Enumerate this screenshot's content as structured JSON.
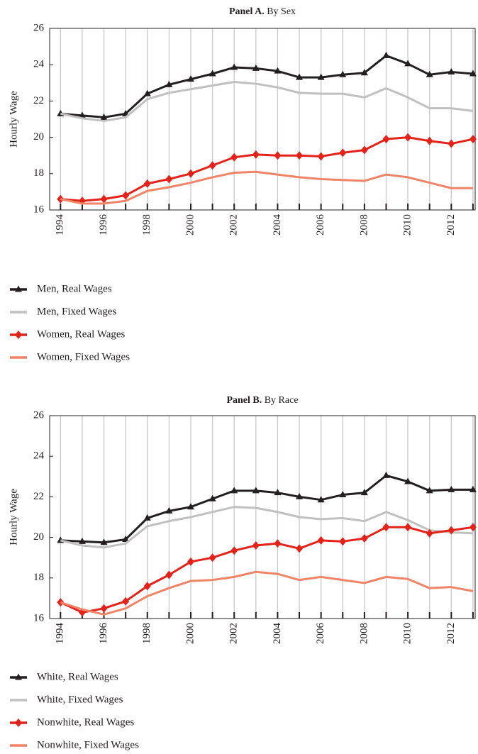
{
  "chart_data": [
    {
      "type": "line",
      "title_prefix": "Panel A.",
      "title": "By Sex",
      "ylabel": "Hourly Wage",
      "x": [
        1994,
        1995,
        1996,
        1997,
        1998,
        1999,
        2000,
        2001,
        2002,
        2003,
        2004,
        2005,
        2006,
        2007,
        2008,
        2009,
        2010,
        2011,
        2012,
        2013
      ],
      "xlim": [
        1993.5,
        2013.1
      ],
      "xticks": [
        1994,
        1996,
        1998,
        2000,
        2002,
        2004,
        2006,
        2008,
        2010,
        2012
      ],
      "ylim": [
        16,
        26
      ],
      "yticks": [
        16,
        18,
        20,
        22,
        24,
        26
      ],
      "grid": "x",
      "series": [
        {
          "name": "Men, Real Wages",
          "color": "#231f20",
          "marker": "triangle",
          "values": [
            21.3,
            21.2,
            21.1,
            21.3,
            22.4,
            22.9,
            23.2,
            23.5,
            23.85,
            23.8,
            23.65,
            23.3,
            23.3,
            23.45,
            23.55,
            24.5,
            24.05,
            23.45,
            23.6,
            23.5
          ]
        },
        {
          "name": "Men, Fixed Wages",
          "color": "#c0c0c0",
          "values": [
            21.3,
            21.05,
            20.9,
            21.1,
            22.1,
            22.45,
            22.65,
            22.85,
            23.05,
            22.95,
            22.75,
            22.45,
            22.4,
            22.4,
            22.2,
            22.7,
            22.2,
            21.6,
            21.6,
            21.45
          ]
        },
        {
          "name": "Women, Real Wages",
          "color": "#e32219",
          "marker": "diamond",
          "values": [
            16.6,
            16.5,
            16.6,
            16.8,
            17.45,
            17.7,
            18.0,
            18.45,
            18.9,
            19.05,
            19.0,
            19.0,
            18.95,
            19.15,
            19.3,
            19.9,
            20.0,
            19.8,
            19.65,
            19.9
          ]
        },
        {
          "name": "Women, Fixed Wages",
          "color": "#f08467",
          "values": [
            16.6,
            16.35,
            16.35,
            16.5,
            17.05,
            17.25,
            17.5,
            17.8,
            18.05,
            18.1,
            17.95,
            17.8,
            17.7,
            17.65,
            17.6,
            17.95,
            17.8,
            17.5,
            17.2,
            17.2
          ]
        }
      ]
    },
    {
      "type": "line",
      "title_prefix": "Panel B.",
      "title": "By Race",
      "ylabel": "Hourly Wage",
      "x": [
        1994,
        1995,
        1996,
        1997,
        1998,
        1999,
        2000,
        2001,
        2002,
        2003,
        2004,
        2005,
        2006,
        2007,
        2008,
        2009,
        2010,
        2011,
        2012,
        2013
      ],
      "xlim": [
        1993.5,
        2013.1
      ],
      "xticks": [
        1994,
        1996,
        1998,
        2000,
        2002,
        2004,
        2006,
        2008,
        2010,
        2012
      ],
      "ylim": [
        16,
        26
      ],
      "yticks": [
        16,
        18,
        20,
        22,
        24,
        26
      ],
      "grid": "x",
      "series": [
        {
          "name": "White, Real Wages",
          "color": "#231f20",
          "marker": "triangle",
          "values": [
            19.85,
            19.8,
            19.75,
            19.9,
            20.95,
            21.3,
            21.5,
            21.9,
            22.3,
            22.3,
            22.2,
            22.0,
            21.85,
            22.1,
            22.2,
            23.05,
            22.75,
            22.3,
            22.35,
            22.35
          ]
        },
        {
          "name": "White, Fixed Wages",
          "color": "#c0c0c0",
          "values": [
            19.85,
            19.6,
            19.5,
            19.7,
            20.55,
            20.8,
            21.0,
            21.25,
            21.5,
            21.45,
            21.25,
            21.0,
            20.9,
            20.95,
            20.8,
            21.25,
            20.85,
            20.35,
            20.25,
            20.2
          ]
        },
        {
          "name": "Nonwhite, Real Wages",
          "color": "#e32219",
          "marker": "diamond",
          "values": [
            16.8,
            16.3,
            16.5,
            16.85,
            17.6,
            18.15,
            18.8,
            19.0,
            19.35,
            19.6,
            19.7,
            19.45,
            19.85,
            19.8,
            19.95,
            20.5,
            20.5,
            20.2,
            20.35,
            20.5
          ]
        },
        {
          "name": "Nonwhite, Fixed Wages",
          "color": "#f08467",
          "values": [
            16.8,
            16.45,
            16.2,
            16.5,
            17.1,
            17.5,
            17.85,
            17.9,
            18.05,
            18.3,
            18.2,
            17.9,
            18.05,
            17.9,
            17.75,
            18.05,
            17.95,
            17.5,
            17.55,
            17.35
          ]
        }
      ]
    }
  ]
}
